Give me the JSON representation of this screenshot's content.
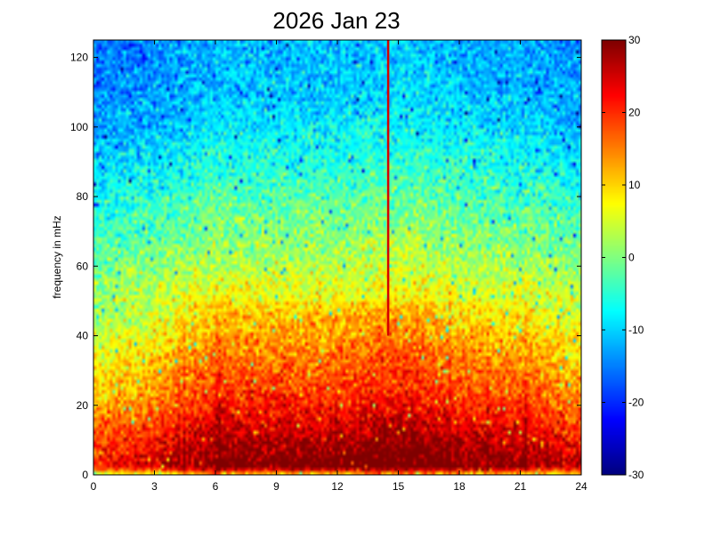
{
  "chart_data": {
    "type": "heatmap",
    "title": "2026 Jan 23",
    "xlabel": "",
    "ylabel": "frequency in mHz",
    "xlim": [
      0,
      24
    ],
    "ylim": [
      0,
      125
    ],
    "x_ticks": [
      0,
      3,
      6,
      9,
      12,
      15,
      18,
      21,
      24
    ],
    "y_ticks": [
      0,
      20,
      40,
      60,
      80,
      100,
      120
    ],
    "colorbar": {
      "colormap": "jet",
      "range": [
        -30,
        30
      ],
      "ticks": [
        -30,
        -20,
        -10,
        0,
        10,
        20,
        30
      ]
    },
    "frequency_profile_db": [
      {
        "freq": 0,
        "level": 5
      },
      {
        "freq": 2,
        "level": 28
      },
      {
        "freq": 5,
        "level": 27
      },
      {
        "freq": 10,
        "level": 24
      },
      {
        "freq": 20,
        "level": 18
      },
      {
        "freq": 30,
        "level": 14
      },
      {
        "freq": 40,
        "level": 10
      },
      {
        "freq": 50,
        "level": 6
      },
      {
        "freq": 60,
        "level": 2
      },
      {
        "freq": 70,
        "level": -1
      },
      {
        "freq": 80,
        "level": -4
      },
      {
        "freq": 90,
        "level": -7
      },
      {
        "freq": 100,
        "level": -10
      },
      {
        "freq": 110,
        "level": -12
      },
      {
        "freq": 125,
        "level": -13
      }
    ],
    "time_activity_boost_db": [
      {
        "hour": 0,
        "boost": -6
      },
      {
        "hour": 3,
        "boost": -3
      },
      {
        "hour": 6,
        "boost": 3
      },
      {
        "hour": 9,
        "boost": 3
      },
      {
        "hour": 12,
        "boost": 3
      },
      {
        "hour": 14,
        "boost": 5
      },
      {
        "hour": 16,
        "boost": 5
      },
      {
        "hour": 18,
        "boost": 2
      },
      {
        "hour": 21,
        "boost": 1
      },
      {
        "hour": 24,
        "boost": -3
      }
    ],
    "annotations": [
      {
        "type": "vertical-line",
        "hour": 14.5,
        "from_freq": 40,
        "to_freq": 125,
        "level": 25
      }
    ]
  }
}
